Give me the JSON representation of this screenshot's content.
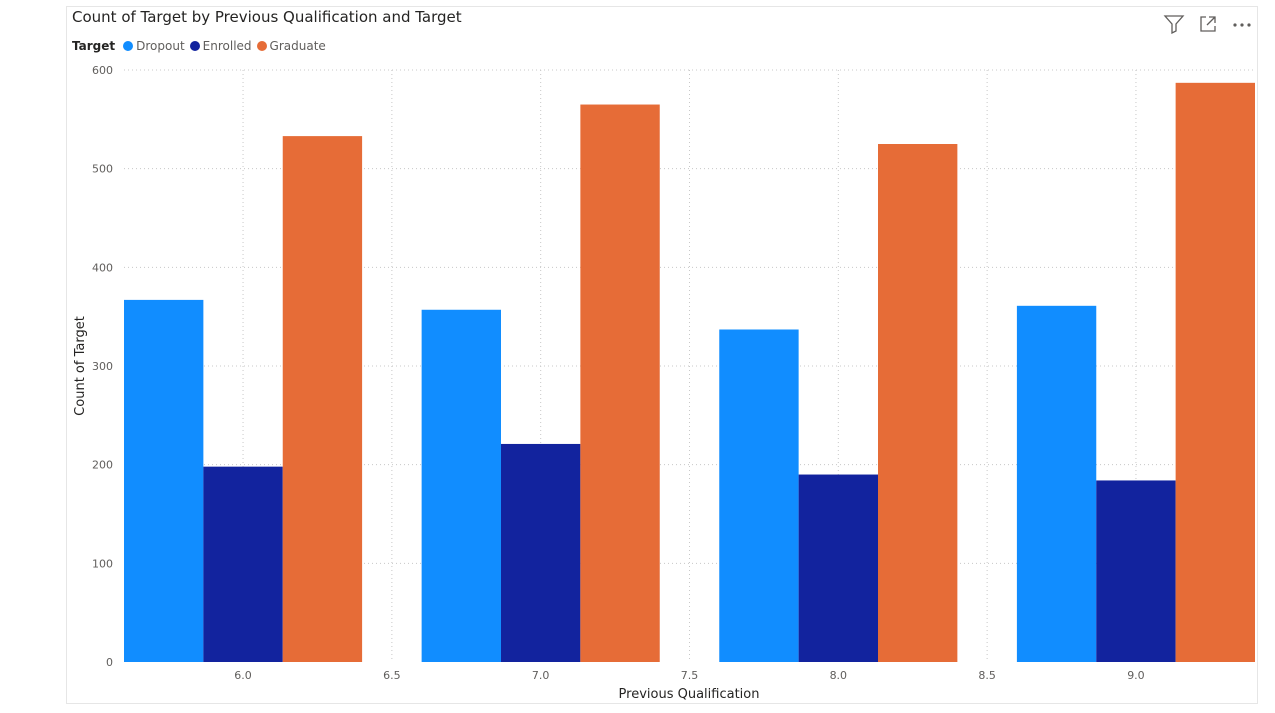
{
  "header": {
    "title": "Count of Target by Previous Qualification and Target",
    "icons": [
      "filter-icon",
      "focus-mode-icon",
      "more-options-icon"
    ]
  },
  "legend": {
    "title": "Target",
    "items": [
      {
        "label": "Dropout",
        "color": "#118DFF"
      },
      {
        "label": "Enrolled",
        "color": "#12239E"
      },
      {
        "label": "Graduate",
        "color": "#E66C37"
      }
    ]
  },
  "chart_data": {
    "type": "bar",
    "title": "Count of Target by Previous Qualification and Target",
    "xlabel": "Previous Qualification",
    "ylabel": "Count of Target",
    "x_ticks": [
      "6.0",
      "6.5",
      "7.0",
      "7.5",
      "8.0",
      "8.5",
      "9.0"
    ],
    "x_tick_values": [
      6.0,
      6.5,
      7.0,
      7.5,
      8.0,
      8.5,
      9.0
    ],
    "xlim": [
      5.6,
      9.4
    ],
    "categories": [
      6.0,
      7.0,
      8.0,
      9.0
    ],
    "y_ticks": [
      0,
      100,
      200,
      300,
      400,
      500,
      600
    ],
    "ylim": [
      0,
      600
    ],
    "grid": true,
    "legend_position": "top-left",
    "series": [
      {
        "name": "Dropout",
        "color": "#118DFF",
        "values": [
          367,
          357,
          337,
          361
        ]
      },
      {
        "name": "Enrolled",
        "color": "#12239E",
        "values": [
          198,
          221,
          190,
          184
        ]
      },
      {
        "name": "Graduate",
        "color": "#E66C37",
        "values": [
          533,
          565,
          525,
          587
        ]
      }
    ]
  }
}
